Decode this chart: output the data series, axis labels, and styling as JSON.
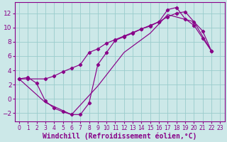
{
  "xlabel": "Windchill (Refroidissement éolien,°C)",
  "bg_color": "#cce8e8",
  "line_color": "#880088",
  "grid_color": "#99cccc",
  "xlim": [
    -0.5,
    23.5
  ],
  "ylim": [
    -3.2,
    13.5
  ],
  "xticks": [
    0,
    1,
    2,
    3,
    4,
    5,
    6,
    7,
    8,
    9,
    10,
    11,
    12,
    13,
    14,
    15,
    16,
    17,
    18,
    19,
    20,
    21,
    22,
    23
  ],
  "yticks": [
    -2,
    0,
    2,
    4,
    6,
    8,
    10,
    12
  ],
  "line1_x": [
    0,
    1,
    2,
    3,
    4,
    5,
    6,
    7,
    8,
    9,
    10,
    11,
    12,
    13,
    14,
    15,
    16,
    17,
    18,
    19,
    20,
    21,
    22
  ],
  "line1_y": [
    2.8,
    3.0,
    2.2,
    -0.3,
    -1.3,
    -1.8,
    -2.2,
    -2.2,
    -0.6,
    4.8,
    6.5,
    8.2,
    8.7,
    9.2,
    9.8,
    10.2,
    10.8,
    12.5,
    12.8,
    11.2,
    10.3,
    8.5,
    6.7
  ],
  "line2_x": [
    0,
    3,
    6,
    9,
    12,
    15,
    17,
    20,
    22
  ],
  "line2_y": [
    2.8,
    -0.5,
    -2.2,
    1.8,
    6.5,
    9.2,
    11.8,
    10.8,
    6.7
  ],
  "line3_x": [
    0,
    1,
    3,
    4,
    5,
    6,
    7,
    8,
    9,
    10,
    11,
    12,
    13,
    14,
    15,
    16,
    17,
    18,
    19,
    20,
    21,
    22
  ],
  "line3_y": [
    2.8,
    2.8,
    2.8,
    3.2,
    3.8,
    4.3,
    4.8,
    6.5,
    7.0,
    7.8,
    8.3,
    8.8,
    9.3,
    9.8,
    10.3,
    10.8,
    11.5,
    12.0,
    12.2,
    10.8,
    9.5,
    6.7
  ],
  "xlabel_fontsize": 7,
  "xtick_fontsize": 5.5,
  "ytick_fontsize": 6.5
}
